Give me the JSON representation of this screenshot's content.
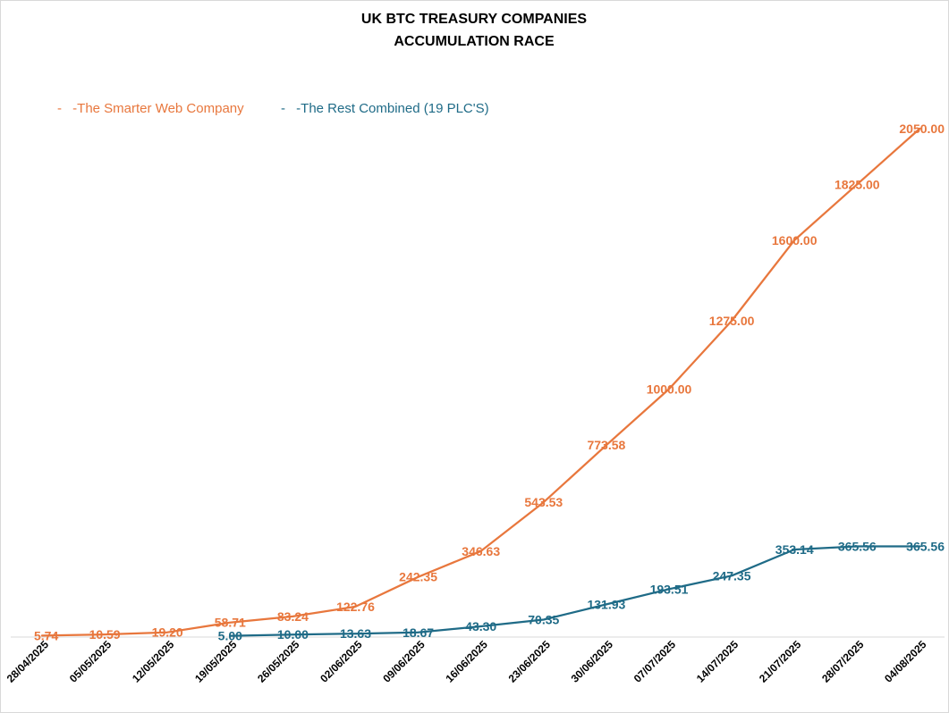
{
  "chart_data": {
    "type": "line",
    "title_lines": [
      "UK BTC TREASURY COMPANIES",
      "ACCUMULATION RACE"
    ],
    "xlabel": "",
    "ylabel": "",
    "ylim": [
      0,
      2100
    ],
    "grid": false,
    "legend_position": "top-left",
    "categories": [
      "28/04/2025",
      "05/05/2025",
      "12/05/2025",
      "19/05/2025",
      "26/05/2025",
      "02/06/2025",
      "09/06/2025",
      "16/06/2025",
      "23/06/2025",
      "30/06/2025",
      "07/07/2025",
      "14/07/2025",
      "21/07/2025",
      "28/07/2025",
      "04/08/2025"
    ],
    "series": [
      {
        "name": "-The Smarter Web Company",
        "legend_marker": "- ",
        "color": "#E8773D",
        "values": [
          5.74,
          10.59,
          19.2,
          58.71,
          83.24,
          122.76,
          242.35,
          346.63,
          543.53,
          773.58,
          1000.0,
          1275.0,
          1600.0,
          1825.0,
          2050.0
        ],
        "labels": [
          "5.74",
          "10.59",
          "19.20",
          "58.71",
          "83.24",
          "122.76",
          "242.35",
          "346.63",
          "543.53",
          "773.58",
          "1000.00",
          "1275.00",
          "1600.00",
          "1825.00",
          "2050.00"
        ]
      },
      {
        "name": "-The Rest Combined (19 PLC'S)",
        "legend_marker": "- ",
        "color": "#1F6B87",
        "values": [
          null,
          null,
          null,
          5.0,
          10.0,
          13.63,
          18.67,
          43.3,
          70.35,
          131.93,
          193.51,
          247.35,
          353.14,
          365.56,
          365.56
        ],
        "labels": [
          null,
          null,
          null,
          "5.00",
          "10.00",
          "13.63",
          "18.67",
          "43.30",
          "70.35",
          "131.93",
          "193.51",
          "247.35",
          "353.14",
          "365.56",
          "365.56"
        ]
      }
    ]
  }
}
